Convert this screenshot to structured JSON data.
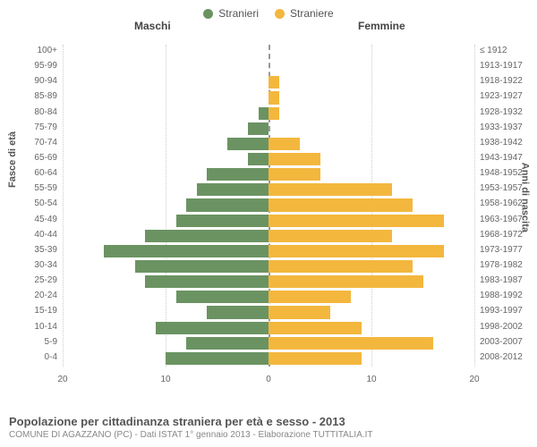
{
  "chart": {
    "type": "population-pyramid",
    "legend": [
      {
        "label": "Stranieri",
        "color": "#6b9362"
      },
      {
        "label": "Straniere",
        "color": "#f3b73e"
      }
    ],
    "header_left": "Maschi",
    "header_right": "Femmine",
    "axis_title_left": "Fasce di età",
    "axis_title_right": "Anni di nascita",
    "xmax": 20,
    "xticks": [
      20,
      10,
      0,
      10,
      20
    ],
    "title": "Popolazione per cittadinanza straniera per età e sesso - 2013",
    "subtitle": "COMUNE DI AGAZZANO (PC) - Dati ISTAT 1° gennaio 2013 - Elaborazione TUTTITALIA.IT",
    "bar_color_left": "#6b9362",
    "bar_color_right": "#f3b73e",
    "grid_color": "#cccccc",
    "center_color": "#999999",
    "background_color": "#ffffff",
    "label_fontsize": 10,
    "header_fontsize": 12,
    "title_fontsize": 13,
    "rows": [
      {
        "age": "100+",
        "birth": "≤ 1912",
        "m": 0,
        "f": 0
      },
      {
        "age": "95-99",
        "birth": "1913-1917",
        "m": 0,
        "f": 0
      },
      {
        "age": "90-94",
        "birth": "1918-1922",
        "m": 0,
        "f": 1
      },
      {
        "age": "85-89",
        "birth": "1923-1927",
        "m": 0,
        "f": 1
      },
      {
        "age": "80-84",
        "birth": "1928-1932",
        "m": 1,
        "f": 1
      },
      {
        "age": "75-79",
        "birth": "1933-1937",
        "m": 2,
        "f": 0
      },
      {
        "age": "70-74",
        "birth": "1938-1942",
        "m": 4,
        "f": 3
      },
      {
        "age": "65-69",
        "birth": "1943-1947",
        "m": 2,
        "f": 5
      },
      {
        "age": "60-64",
        "birth": "1948-1952",
        "m": 6,
        "f": 5
      },
      {
        "age": "55-59",
        "birth": "1953-1957",
        "m": 7,
        "f": 12
      },
      {
        "age": "50-54",
        "birth": "1958-1962",
        "m": 8,
        "f": 14
      },
      {
        "age": "45-49",
        "birth": "1963-1967",
        "m": 9,
        "f": 17
      },
      {
        "age": "40-44",
        "birth": "1968-1972",
        "m": 12,
        "f": 12
      },
      {
        "age": "35-39",
        "birth": "1973-1977",
        "m": 16,
        "f": 17
      },
      {
        "age": "30-34",
        "birth": "1978-1982",
        "m": 13,
        "f": 14
      },
      {
        "age": "25-29",
        "birth": "1983-1987",
        "m": 12,
        "f": 15
      },
      {
        "age": "20-24",
        "birth": "1988-1992",
        "m": 9,
        "f": 8
      },
      {
        "age": "15-19",
        "birth": "1993-1997",
        "m": 6,
        "f": 6
      },
      {
        "age": "10-14",
        "birth": "1998-2002",
        "m": 11,
        "f": 9
      },
      {
        "age": "5-9",
        "birth": "2003-2007",
        "m": 8,
        "f": 16
      },
      {
        "age": "0-4",
        "birth": "2008-2012",
        "m": 10,
        "f": 9
      }
    ]
  }
}
